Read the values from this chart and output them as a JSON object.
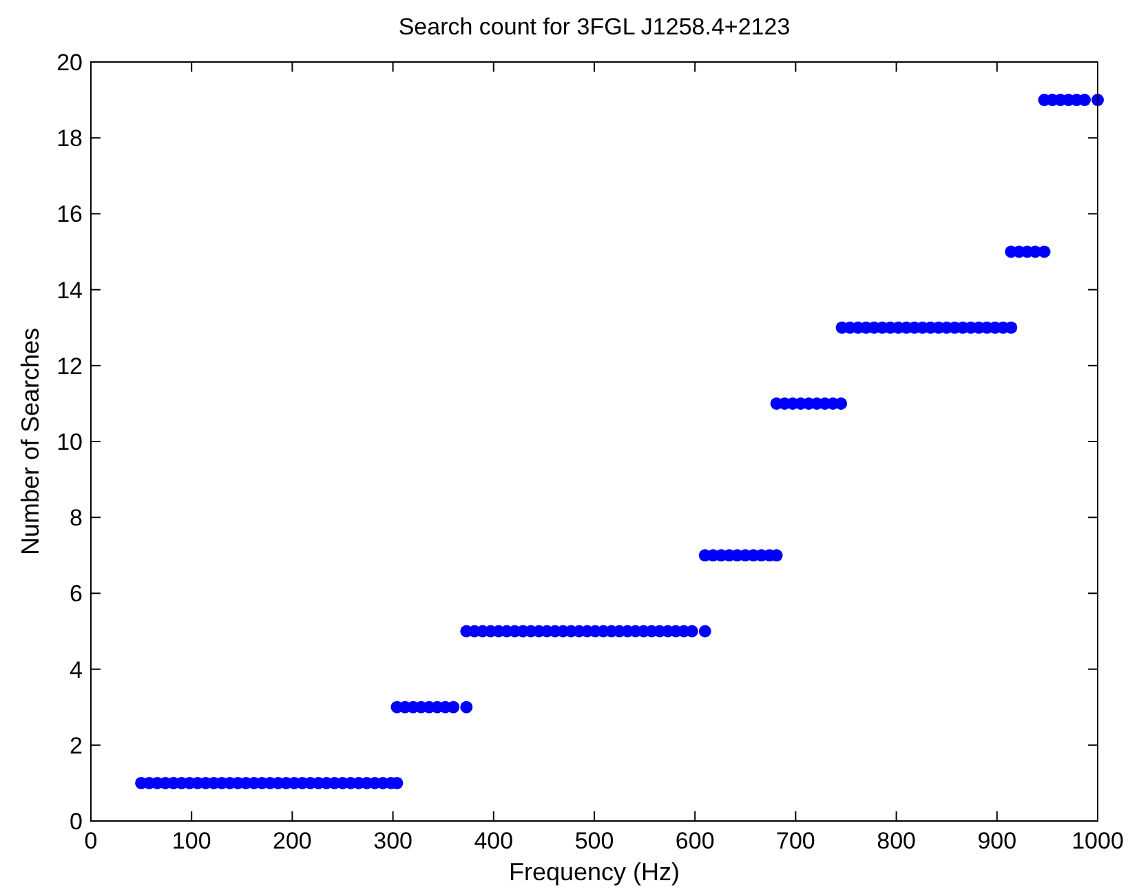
{
  "chart_data": {
    "type": "scatter",
    "title": "Search count for 3FGL J1258.4+2123",
    "xlabel": "Frequency (Hz)",
    "ylabel": "Number of Searches",
    "xlim": [
      0,
      1000
    ],
    "xticks": [
      0,
      100,
      200,
      300,
      400,
      500,
      600,
      700,
      800,
      900,
      1000
    ],
    "ylim": [
      0,
      20
    ],
    "yticks": [
      0,
      2,
      4,
      6,
      8,
      10,
      12,
      14,
      16,
      18,
      20
    ],
    "marker": "circle",
    "grid": false,
    "series": [
      {
        "color": "#0000ff",
        "x": [
          50,
          58,
          66,
          74,
          82,
          90,
          98,
          106,
          114,
          122,
          130,
          138,
          146,
          154,
          162,
          170,
          178,
          186,
          194,
          202,
          210,
          218,
          226,
          234,
          242,
          250,
          258,
          266,
          274,
          282,
          290,
          298,
          304
        ],
        "values": [
          1,
          1,
          1,
          1,
          1,
          1,
          1,
          1,
          1,
          1,
          1,
          1,
          1,
          1,
          1,
          1,
          1,
          1,
          1,
          1,
          1,
          1,
          1,
          1,
          1,
          1,
          1,
          1,
          1,
          1,
          1,
          1,
          1
        ]
      },
      {
        "color": "#0000ff",
        "x": [
          304,
          312,
          320,
          328,
          336,
          344,
          352,
          360,
          373
        ],
        "values": [
          3,
          3,
          3,
          3,
          3,
          3,
          3,
          3,
          3
        ]
      },
      {
        "color": "#0000ff",
        "x": [
          373,
          381,
          389,
          397,
          405,
          413,
          421,
          429,
          437,
          445,
          453,
          461,
          469,
          477,
          485,
          493,
          501,
          509,
          517,
          525,
          533,
          541,
          549,
          557,
          565,
          573,
          581,
          589,
          597,
          610
        ],
        "values": [
          5,
          5,
          5,
          5,
          5,
          5,
          5,
          5,
          5,
          5,
          5,
          5,
          5,
          5,
          5,
          5,
          5,
          5,
          5,
          5,
          5,
          5,
          5,
          5,
          5,
          5,
          5,
          5,
          5,
          5
        ]
      },
      {
        "color": "#0000ff",
        "x": [
          610,
          618,
          626,
          634,
          642,
          650,
          658,
          666,
          674,
          681
        ],
        "values": [
          7,
          7,
          7,
          7,
          7,
          7,
          7,
          7,
          7,
          7
        ]
      },
      {
        "color": "#0000ff",
        "x": [
          681,
          689,
          697,
          705,
          713,
          721,
          729,
          737,
          745
        ],
        "values": [
          11,
          11,
          11,
          11,
          11,
          11,
          11,
          11,
          11
        ]
      },
      {
        "color": "#0000ff",
        "x": [
          746,
          754,
          762,
          770,
          778,
          786,
          794,
          802,
          810,
          818,
          826,
          834,
          842,
          850,
          858,
          866,
          874,
          882,
          890,
          898,
          906,
          914
        ],
        "values": [
          13,
          13,
          13,
          13,
          13,
          13,
          13,
          13,
          13,
          13,
          13,
          13,
          13,
          13,
          13,
          13,
          13,
          13,
          13,
          13,
          13,
          13
        ]
      },
      {
        "color": "#0000ff",
        "x": [
          914,
          922,
          930,
          938,
          947
        ],
        "values": [
          15,
          15,
          15,
          15,
          15
        ]
      },
      {
        "color": "#0000ff",
        "x": [
          947,
          955,
          963,
          971,
          979,
          987,
          1000
        ],
        "values": [
          19,
          19,
          19,
          19,
          19,
          19,
          19
        ]
      }
    ]
  }
}
